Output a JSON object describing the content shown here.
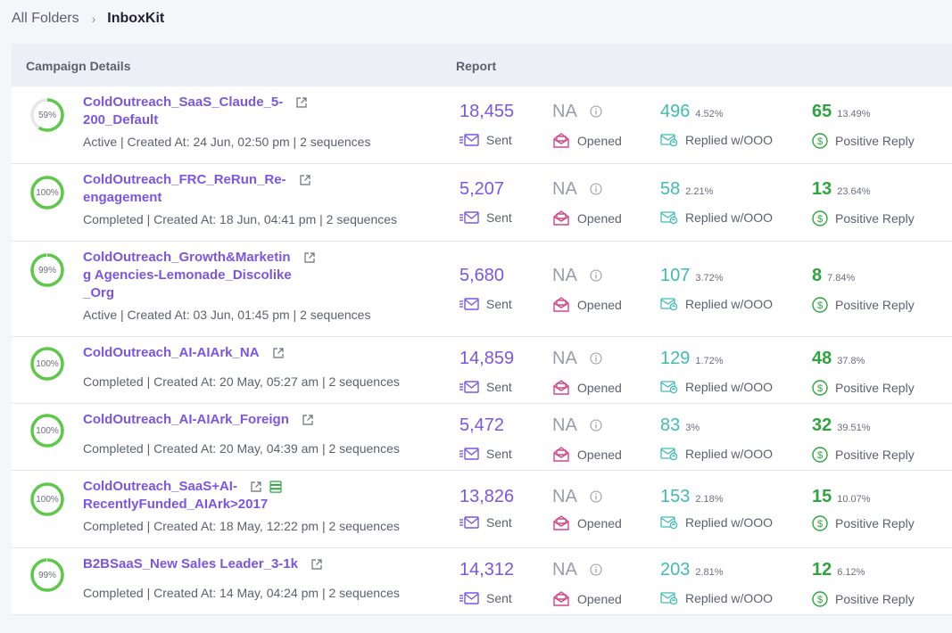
{
  "breadcrumb": {
    "root": "All Folders",
    "separator": "›",
    "current": "InboxKit"
  },
  "header": {
    "campaign_details": "Campaign Details",
    "report": "Report"
  },
  "labels": {
    "sent": "Sent",
    "opened": "Opened",
    "replied": "Replied w/OOO",
    "positive": "Positive Reply"
  },
  "colors": {
    "accent": "#7b55e6",
    "ring": "#5ec84a",
    "replied": "#3fbcb2",
    "positive": "#2ea43e",
    "opened": "#d0478a"
  },
  "campaigns": [
    {
      "progress": "59%",
      "progress_value": 0.59,
      "name_lines": [
        "ColdOutreach_SaaS_Claude_5-",
        "200_Default"
      ],
      "meta": "Active | Created At: 24 Jun, 02:50 pm | 2 sequences",
      "sent": "18,455",
      "opened": "NA",
      "replied": "496",
      "replied_pct": "4.52%",
      "positive": "65",
      "positive_pct": "13.49%"
    },
    {
      "progress": "100%",
      "progress_value": 1.0,
      "name_lines": [
        "ColdOutreach_FRC_ReRun_Re-",
        "engagement"
      ],
      "meta": "Completed | Created At: 18 Jun, 04:41 pm | 2 sequences",
      "sent": "5,207",
      "opened": "NA",
      "replied": "58",
      "replied_pct": "2.21%",
      "positive": "13",
      "positive_pct": "23.64%"
    },
    {
      "progress": "99%",
      "progress_value": 0.99,
      "name_lines": [
        "ColdOutreach_Growth&Marketin",
        "g Agencies-Lemonade_Discolike",
        "_Org"
      ],
      "meta": "Active | Created At: 03 Jun, 01:45 pm | 2 sequences",
      "sent": "5,680",
      "opened": "NA",
      "replied": "107",
      "replied_pct": "3.72%",
      "positive": "8",
      "positive_pct": "7.84%"
    },
    {
      "progress": "100%",
      "progress_value": 1.0,
      "name_lines": [
        "ColdOutreach_AI-AIArk_NA"
      ],
      "meta": "Completed | Created At: 20 May, 05:27 am | 2 sequences",
      "sent": "14,859",
      "opened": "NA",
      "replied": "129",
      "replied_pct": "1.72%",
      "positive": "48",
      "positive_pct": "37.8%"
    },
    {
      "progress": "100%",
      "progress_value": 1.0,
      "name_lines": [
        "ColdOutreach_AI-AIArk_Foreign"
      ],
      "meta": "Completed | Created At: 20 May, 04:39 am | 2 sequences",
      "sent": "5,472",
      "opened": "NA",
      "replied": "83",
      "replied_pct": "3%",
      "positive": "32",
      "positive_pct": "39.51%"
    },
    {
      "progress": "100%",
      "progress_value": 1.0,
      "name_lines": [
        "ColdOutreach_SaaS+AI-",
        "RecentlyFunded_AIArk>2017"
      ],
      "meta": "Completed | Created At: 18 May, 12:22 pm | 2 sequences",
      "sent": "13,826",
      "opened": "NA",
      "replied": "153",
      "replied_pct": "2.18%",
      "positive": "15",
      "positive_pct": "10.07%",
      "has_db_icon": true
    },
    {
      "progress": "99%",
      "progress_value": 0.99,
      "name_lines": [
        "B2BSaaS_New Sales Leader_3-1k"
      ],
      "meta": "Completed | Created At: 14 May, 04:24 pm | 2 sequences",
      "sent": "14,312",
      "opened": "NA",
      "replied": "203",
      "replied_pct": "2.81%",
      "positive": "12",
      "positive_pct": "6.12%"
    }
  ]
}
